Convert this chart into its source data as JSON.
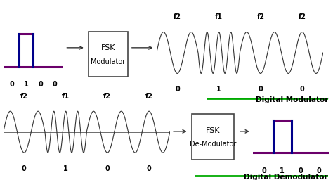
{
  "bg_color": "#ffffff",
  "digital_modulator_label": "Digital Modulator",
  "digital_demodulator_label": "Digital Demodulator",
  "bit_labels": [
    "0",
    "1",
    "0",
    "0"
  ],
  "freq_labels_top": [
    "f2",
    "f1",
    "f2",
    "f2"
  ],
  "signal_color": "#333333",
  "digital_color_h": "#6B006B",
  "digital_color_v": "#00008B",
  "label_color_green": "#00AA00",
  "box_color": "#444444",
  "arrow_color": "#333333",
  "text_color": "#000000"
}
